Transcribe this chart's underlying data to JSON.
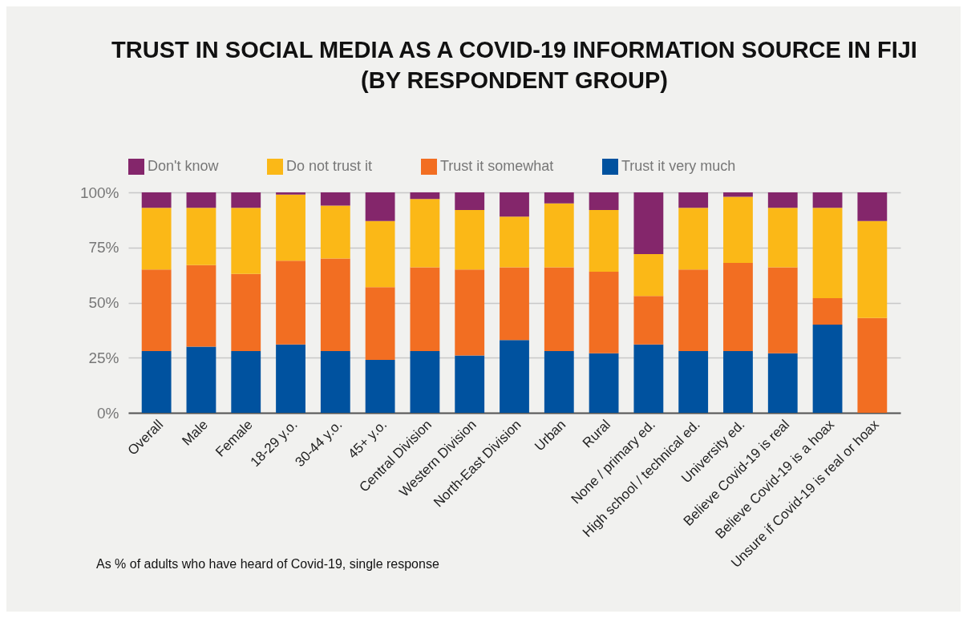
{
  "chart_data": {
    "type": "bar",
    "title": "TRUST IN SOCIAL MEDIA AS A COVID-19 INFORMATION SOURCE IN FIJI\n(BY RESPONDENT GROUP)",
    "stacked": true,
    "categories": [
      "Overall",
      "Male",
      "Female",
      "18-29 y.o.",
      "30-44 y.o.",
      "45+ y.o.",
      "Central Division",
      "Western Division",
      "North-East Division",
      "Urban",
      "Rural",
      "None / primary ed.",
      "High school / technical ed.",
      "University ed.",
      "Believe Covid-19 is real",
      "Believe Covid-19 is a hoax",
      "Unsure if Covid-19 is real or hoax"
    ],
    "series": [
      {
        "name": "Trust it very much",
        "color": "#00529f",
        "values": [
          28,
          30,
          28,
          31,
          28,
          24,
          28,
          26,
          33,
          28,
          27,
          31,
          28,
          28,
          27,
          40,
          0
        ]
      },
      {
        "name": "Trust it somewhat",
        "color": "#f26e22",
        "values": [
          37,
          37,
          35,
          38,
          42,
          33,
          38,
          39,
          33,
          38,
          37,
          22,
          37,
          40,
          39,
          12,
          43
        ]
      },
      {
        "name": "Do not trust it",
        "color": "#fbb817",
        "values": [
          28,
          26,
          30,
          30,
          24,
          30,
          31,
          27,
          23,
          29,
          28,
          19,
          28,
          30,
          27,
          41,
          44
        ]
      },
      {
        "name": "Don't know",
        "color": "#84266b",
        "values": [
          7,
          7,
          7,
          1,
          6,
          13,
          3,
          8,
          11,
          5,
          8,
          28,
          7,
          2,
          7,
          7,
          13
        ]
      }
    ],
    "ylim": [
      0,
      100
    ],
    "yticks": [
      {
        "value": 0,
        "label": "0%"
      },
      {
        "value": 25,
        "label": "25%"
      },
      {
        "value": 50,
        "label": "50%"
      },
      {
        "value": 75,
        "label": "75%"
      },
      {
        "value": 100,
        "label": "100%"
      }
    ],
    "grid": "y",
    "legend": "top",
    "annotations": [
      "As % of adults who have heard of Covid-19, single response"
    ]
  }
}
